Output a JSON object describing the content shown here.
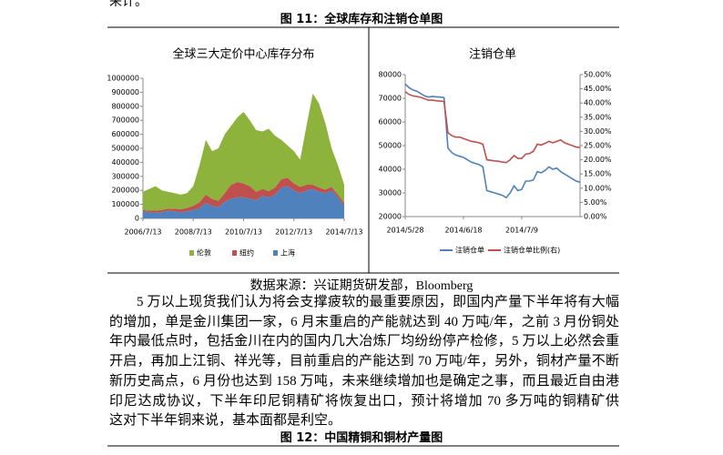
{
  "top_fragment": "来计。",
  "figure_11": {
    "caption": "图 11：全球库存和注销仓单图",
    "charts": [
      {
        "type": "area",
        "stacked": true,
        "title": "全球三大定价中心库存分布",
        "categories": [
          "2006/7/13",
          null,
          null,
          null,
          null,
          null,
          null,
          null,
          "2008/7/13",
          null,
          null,
          null,
          null,
          null,
          null,
          null,
          "2010/7/13",
          null,
          null,
          null,
          null,
          null,
          null,
          null,
          "2012/7/13",
          null,
          null,
          null,
          null,
          null,
          null,
          null,
          "2014/7/13"
        ],
        "series": [
          {
            "name": "伦敦",
            "color": "#8db33c",
            "values": [
              130000,
              155000,
              175000,
              140000,
              120000,
              110000,
              105000,
              105000,
              140000,
              265000,
              390000,
              340000,
              375000,
              420000,
              420000,
              460000,
              510000,
              470000,
              440000,
              410000,
              445000,
              370000,
              280000,
              230000,
              230000,
              195000,
              420000,
              650000,
              600000,
              475000,
              275000,
              210000,
              130000
            ]
          },
          {
            "name": "纽约",
            "color": "#c0504d",
            "values": [
              10000,
              10000,
              15000,
              15000,
              15000,
              20000,
              20000,
              25000,
              30000,
              40000,
              60000,
              50000,
              45000,
              60000,
              100000,
              110000,
              100000,
              90000,
              60000,
              50000,
              45000,
              50000,
              60000,
              60000,
              50000,
              45000,
              40000,
              30000,
              30000,
              25000,
              25000,
              20000,
              20000
            ]
          },
          {
            "name": "上海",
            "color": "#4f81bd",
            "values": [
              50000,
              45000,
              40000,
              45000,
              55000,
              50000,
              45000,
              50000,
              60000,
              75000,
              110000,
              90000,
              80000,
              120000,
              140000,
              150000,
              150000,
              140000,
              130000,
              160000,
              150000,
              170000,
              220000,
              230000,
              200000,
              180000,
              200000,
              210000,
              190000,
              180000,
              200000,
              150000,
              90000
            ]
          }
        ],
        "ylim": [
          0,
          1000000
        ],
        "yticks": [
          0,
          100000,
          200000,
          300000,
          400000,
          500000,
          600000,
          700000,
          800000,
          900000,
          1000000
        ]
      },
      {
        "type": "line",
        "title": "注销仓单",
        "categories": [
          "2014/5/28",
          null,
          null,
          null,
          null,
          null,
          null,
          null,
          null,
          null,
          null,
          null,
          null,
          null,
          null,
          "2014/6/18",
          null,
          null,
          null,
          null,
          null,
          null,
          null,
          null,
          null,
          null,
          null,
          null,
          null,
          null,
          "2014/7/9",
          null,
          null,
          null,
          null,
          null,
          null,
          null,
          null,
          null,
          null,
          null,
          null,
          null,
          null,
          null
        ],
        "series": [
          {
            "name": "注销仓单",
            "color": "#4f81bd",
            "values": [
              76000,
              74500,
              73500,
              73000,
              72000,
              71000,
              70500,
              70800,
              70600,
              70500,
              70300,
              49000,
              47000,
              46000,
              45500,
              45000,
              44000,
              43000,
              42500,
              42000,
              41000,
              31000,
              30500,
              30000,
              29500,
              29000,
              28000,
              30000,
              33000,
              31000,
              31500,
              35000,
              35000,
              35500,
              39000,
              38500,
              39500,
              41000,
              40000,
              40500,
              39000,
              38000,
              37000,
              36000,
              35000,
              34500
            ]
          },
          {
            "name": "注销仓单比例(右)",
            "color": "#c0504d",
            "axis": "y2",
            "values": [
              44,
              43,
              42.5,
              42.3,
              42,
              41.5,
              41,
              41,
              40.8,
              40.7,
              40.5,
              29.5,
              28.5,
              28,
              28,
              27.5,
              27,
              26.5,
              26.3,
              26,
              25.5,
              20,
              19.8,
              19.6,
              19.5,
              19.2,
              19,
              20,
              21.5,
              20.5,
              20.5,
              22,
              22.2,
              23,
              25.5,
              25.2,
              25.8,
              26.5,
              26,
              26.5,
              27,
              26,
              25.5,
              25,
              24.5,
              24.3
            ]
          }
        ],
        "ylim": [
          20000,
          80000
        ],
        "yticks": [
          20000,
          30000,
          40000,
          50000,
          60000,
          70000,
          80000
        ],
        "y2lim": [
          0,
          50
        ],
        "y2ticks": [
          {
            "value": 0,
            "label": "0.00%"
          },
          {
            "value": 5,
            "label": "5.00%"
          },
          {
            "value": 10,
            "label": "10.00%"
          },
          {
            "value": 15,
            "label": "15.00%"
          },
          {
            "value": 20,
            "label": "20.00%"
          },
          {
            "value": 25,
            "label": "25.00%"
          },
          {
            "value": 30,
            "label": "30.00%"
          },
          {
            "value": 35,
            "label": "35.00%"
          },
          {
            "value": 40,
            "label": "40.00%"
          },
          {
            "value": 45,
            "label": "45.00%"
          },
          {
            "value": 50,
            "label": "50.00%"
          }
        ]
      }
    ],
    "source": "数据来源：兴证期货研发部，Bloomberg"
  },
  "paragraph": [
    "5 万以上现货我们认为将会支撑疲软的最重要原因，即国内产量下半年将有大幅度",
    "的增加，单是金川集团一家，6 月末重启的产能就达到 40 万吨/年，之前 3 月份铜处于",
    "年内最低点时，包括金川在内的国内几大冶炼厂均纷纷停产检修，5 万以上必然会重新",
    "开启，再加上江铜、祥光等，目前重启的产能达到 70 万吨/年，另外，铜材产量不断刷",
    "新历史高点，6 月份也达到 158 万吨，未来继续增加也是确定之事，而且最近自由港和",
    "印尼达成协议，下半年印尼铜精矿将恢复出口，预计将增加 70 多万吨的铜精矿供给，",
    "这对下半年铜来说，基本面都是利空。"
  ],
  "figure_12": {
    "caption": "图 12：中国精铜和铜材产量图"
  }
}
